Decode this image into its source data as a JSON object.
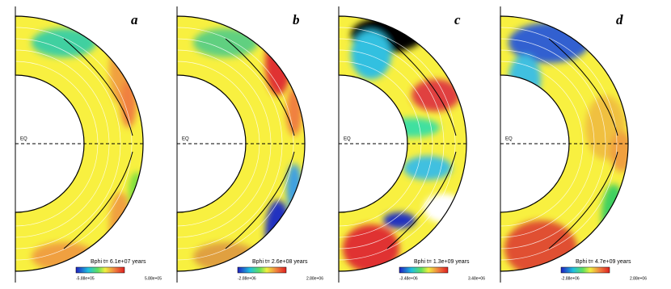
{
  "panels": [
    {
      "letter": "a",
      "equator": "EQ",
      "caption": "Bphi t= 6.1e+07 years",
      "colorbar_min": "-5.88e+05",
      "colorbar_max": "5.88e+05"
    },
    {
      "letter": "b",
      "equator": "EQ",
      "caption": "Bphi t= 2.6e+08 years",
      "colorbar_min": "-2.88e+06",
      "colorbar_max": "2.88e+06"
    },
    {
      "letter": "c",
      "equator": "EQ",
      "caption": "Bphi t= 1.3e+09 years",
      "colorbar_min": "-3.48e+06",
      "colorbar_max": "3.48e+06"
    },
    {
      "letter": "d",
      "equator": "EQ",
      "caption": "Bphi t= 4.7e+09 years",
      "colorbar_min": "-2.88e+06",
      "colorbar_max": "2.88e+06"
    }
  ]
}
